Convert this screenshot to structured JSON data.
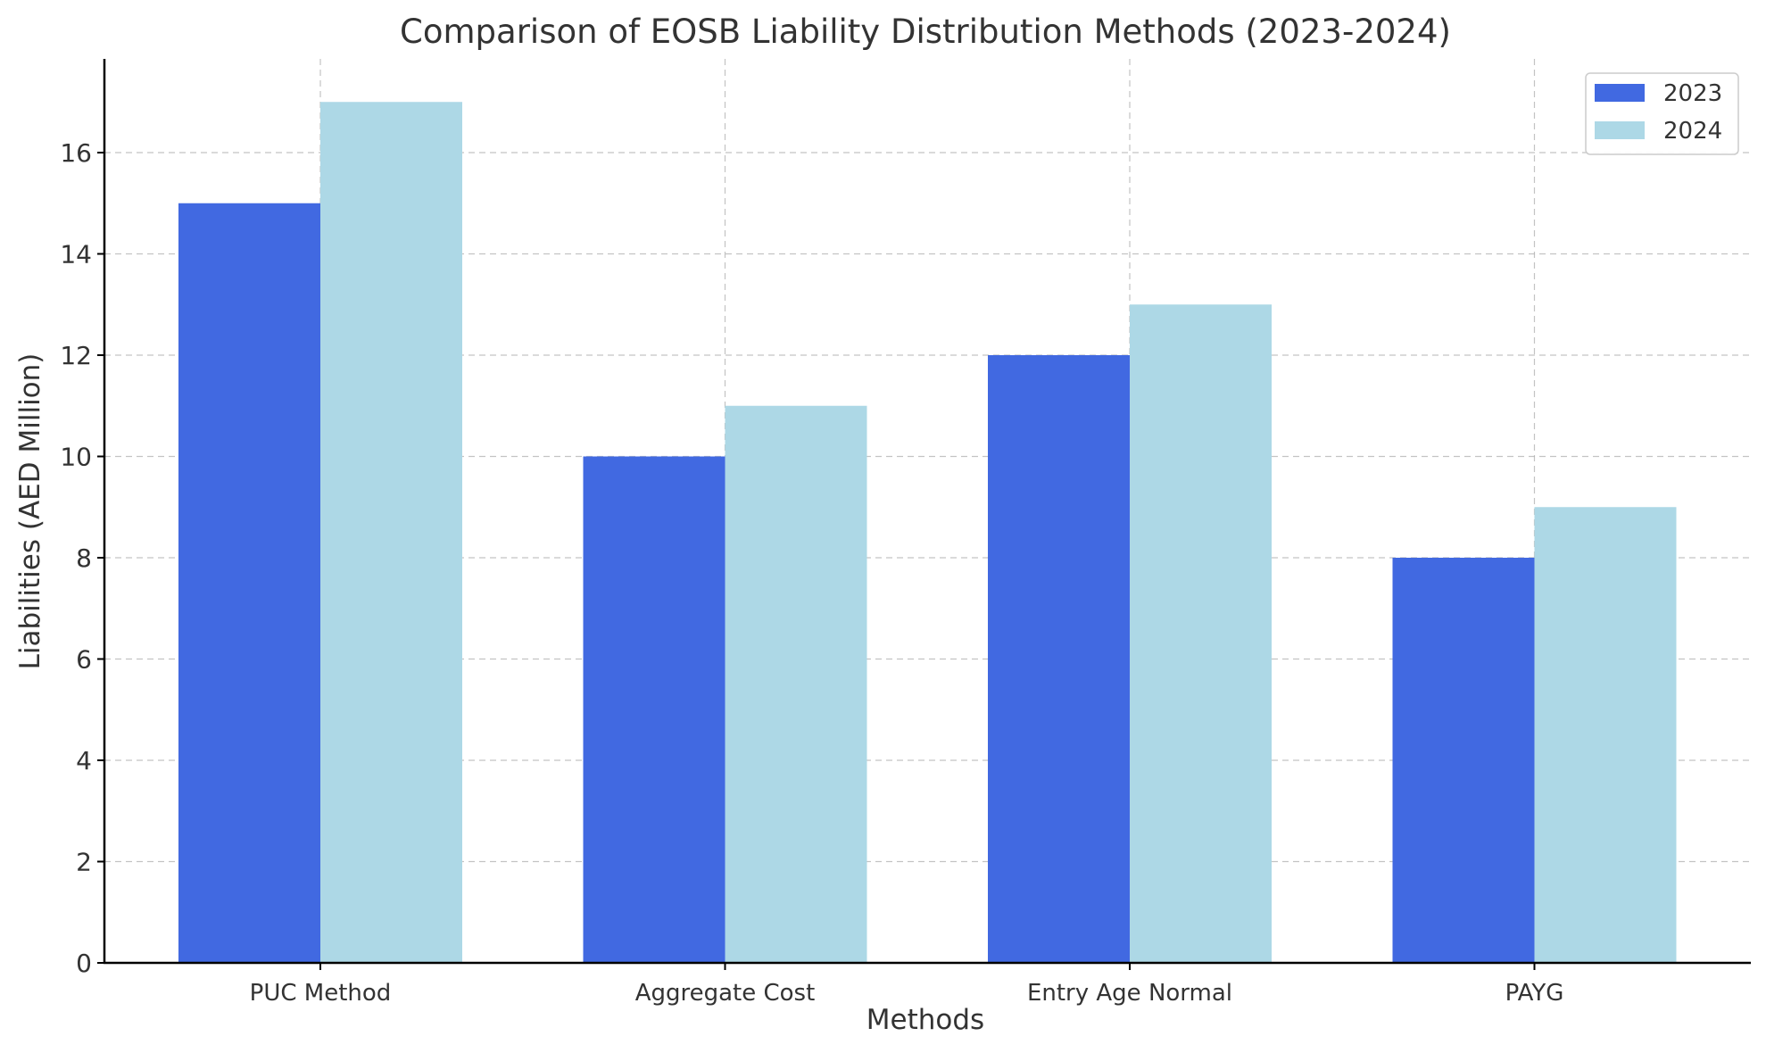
{
  "chart_data": {
    "type": "bar",
    "title": "Comparison of EOSB Liability Distribution Methods (2023-2024)",
    "xlabel": "Methods",
    "ylabel": "Liabilities (AED Million)",
    "categories": [
      "PUC Method",
      "Aggregate Cost",
      "Entry Age Normal",
      "PAYG"
    ],
    "series": [
      {
        "name": "2023",
        "values": [
          15,
          10,
          12,
          8
        ],
        "color": "#4169e1"
      },
      {
        "name": "2024",
        "values": [
          17,
          11,
          13,
          9
        ],
        "color": "#add8e6"
      }
    ],
    "ylim": [
      0,
      17.85
    ],
    "yticks": [
      "0",
      "2",
      "4",
      "6",
      "8",
      "10",
      "12",
      "14",
      "16"
    ],
    "grid": true,
    "legend_position": "top-right"
  }
}
